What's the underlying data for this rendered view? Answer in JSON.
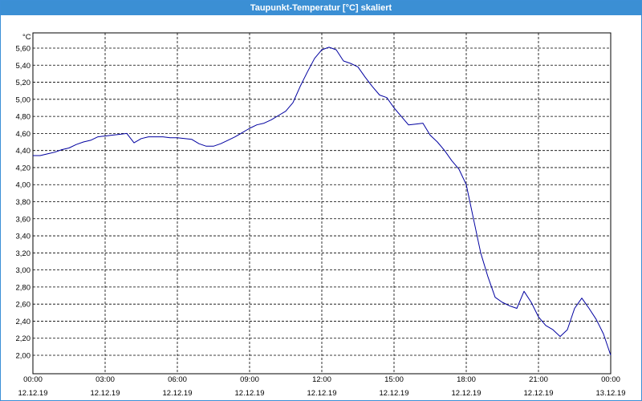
{
  "window": {
    "title": "Taupunkt-Temperatur [°C] skaliert"
  },
  "chart_data": {
    "type": "line",
    "title": "Taupunkt-Temperatur [°C] skaliert",
    "ylabel": "°C",
    "xlabel": "",
    "ylim": [
      2.0,
      5.6
    ],
    "yticks": [
      "2,00",
      "2,20",
      "2,40",
      "2,60",
      "2,80",
      "3,00",
      "3,20",
      "3,40",
      "3,60",
      "3,80",
      "4,00",
      "4,20",
      "4,40",
      "4,60",
      "4,80",
      "5,00",
      "5,20",
      "5,40",
      "5,60"
    ],
    "xlim": [
      0,
      24
    ],
    "xticks": [
      {
        "time": "00:00",
        "date": "12.12.19"
      },
      {
        "time": "03:00",
        "date": "12.12.19"
      },
      {
        "time": "06:00",
        "date": "12.12.19"
      },
      {
        "time": "09:00",
        "date": "12.12.19"
      },
      {
        "time": "12:00",
        "date": "12.12.19"
      },
      {
        "time": "15:00",
        "date": "12.12.19"
      },
      {
        "time": "18:00",
        "date": "12.12.19"
      },
      {
        "time": "21:00",
        "date": "12.12.19"
      },
      {
        "time": "00:00",
        "date": "13.12.19"
      }
    ],
    "grid": true,
    "line_color": "#0000a0",
    "series": [
      {
        "values_note_units": "x in hours since 00:00 12.12.19, y in °C",
        "x": [
          0.0,
          0.3,
          0.6,
          0.9,
          1.2,
          1.5,
          1.8,
          2.1,
          2.4,
          2.7,
          3.0,
          3.3,
          3.6,
          3.9,
          4.2,
          4.5,
          4.8,
          5.1,
          5.4,
          5.7,
          6.0,
          6.3,
          6.6,
          6.9,
          7.2,
          7.5,
          7.8,
          8.1,
          8.4,
          8.7,
          9.0,
          9.3,
          9.6,
          9.9,
          10.2,
          10.5,
          10.8,
          11.1,
          11.4,
          11.7,
          12.0,
          12.3,
          12.6,
          12.9,
          13.2,
          13.5,
          13.8,
          14.1,
          14.4,
          14.7,
          15.0,
          15.3,
          15.6,
          15.9,
          16.2,
          16.5,
          16.8,
          17.1,
          17.4,
          17.7,
          18.0,
          18.3,
          18.6,
          18.9,
          19.2,
          19.5,
          19.8,
          20.1,
          20.4,
          20.7,
          21.0,
          21.3,
          21.6,
          21.9,
          22.2,
          22.5,
          22.8,
          23.1,
          23.4,
          23.7,
          24.0
        ],
        "values": [
          4.34,
          4.34,
          4.36,
          4.38,
          4.41,
          4.43,
          4.47,
          4.5,
          4.52,
          4.56,
          4.57,
          4.58,
          4.59,
          4.6,
          4.49,
          4.54,
          4.56,
          4.56,
          4.56,
          4.55,
          4.55,
          4.54,
          4.53,
          4.48,
          4.45,
          4.45,
          4.48,
          4.52,
          4.56,
          4.61,
          4.66,
          4.7,
          4.72,
          4.76,
          4.81,
          4.86,
          4.96,
          5.15,
          5.32,
          5.48,
          5.58,
          5.61,
          5.58,
          5.45,
          5.42,
          5.38,
          5.26,
          5.15,
          5.05,
          5.02,
          4.9,
          4.8,
          4.7,
          4.71,
          4.72,
          4.58,
          4.5,
          4.4,
          4.28,
          4.18,
          4.0,
          3.6,
          3.2,
          2.92,
          2.68,
          2.62,
          2.58,
          2.55,
          2.75,
          2.62,
          2.45,
          2.35,
          2.3,
          2.22,
          2.3,
          2.55,
          2.67,
          2.55,
          2.42,
          2.25,
          2.0
        ]
      }
    ]
  }
}
